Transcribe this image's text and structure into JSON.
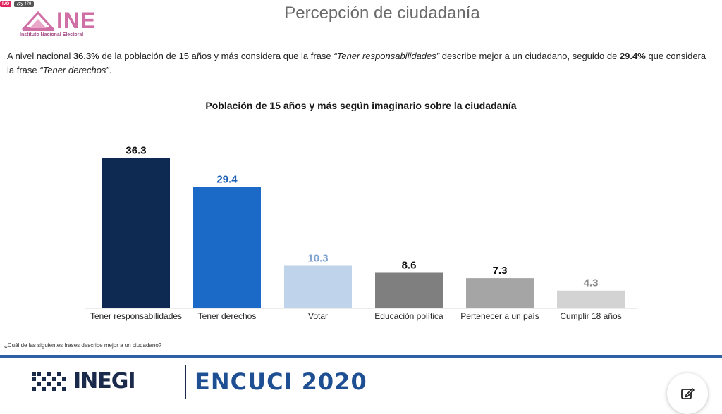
{
  "stream": {
    "live_label": "IVO",
    "viewers": "479"
  },
  "header": {
    "logo_word": "INE",
    "logo_sub": "Instituto Nacional Electoral",
    "title": "Percepción de ciudadanía"
  },
  "intro": {
    "part1": "A nivel nacional ",
    "bold1": "36.3%",
    "part2": " de la población de 15 años y más considera que la frase ",
    "italic1": "“Tener responsabilidades”",
    "part3": " describe mejor a un ciudadano, seguido de ",
    "bold2": "29.4%",
    "part4": " que considera la frase ",
    "italic2": "“Tener derechos”",
    "part5": "."
  },
  "chart_data": {
    "type": "bar",
    "title": "Población de 15 años y más según imaginario sobre la ciudadanía",
    "categories": [
      "Tener responsabilidades",
      "Tener derechos",
      "Votar",
      "Educación política",
      "Pertenecer a un país",
      "Cumplir 18 años"
    ],
    "values": [
      36.3,
      29.4,
      10.3,
      8.6,
      7.3,
      4.3
    ],
    "value_labels": [
      "36.3",
      "29.4",
      "10.3",
      "8.6",
      "7.3",
      "4.3"
    ],
    "colors": [
      "#0f2a52",
      "#1c6ac7",
      "#bfd3ea",
      "#7f7f7f",
      "#a5a5a5",
      "#d3d3d3"
    ],
    "label_colors": [
      "#111111",
      "#1c5fb3",
      "#7fa3cf",
      "#111111",
      "#111111",
      "#8a8a8a"
    ],
    "ylim": [
      0,
      40
    ],
    "grid": false,
    "xlabel": "",
    "ylabel": ""
  },
  "footnote": "¿Cuál de las siguientes frases describe mejor a un ciudadano?",
  "footer": {
    "org": "INEGI",
    "survey": "ENCUCI 2020"
  },
  "colors": {
    "accent_blue": "#2f5fa4",
    "ine_pink": "#d06fa5"
  },
  "icons": {
    "edit": "edit-icon",
    "eye": "eye-icon"
  }
}
